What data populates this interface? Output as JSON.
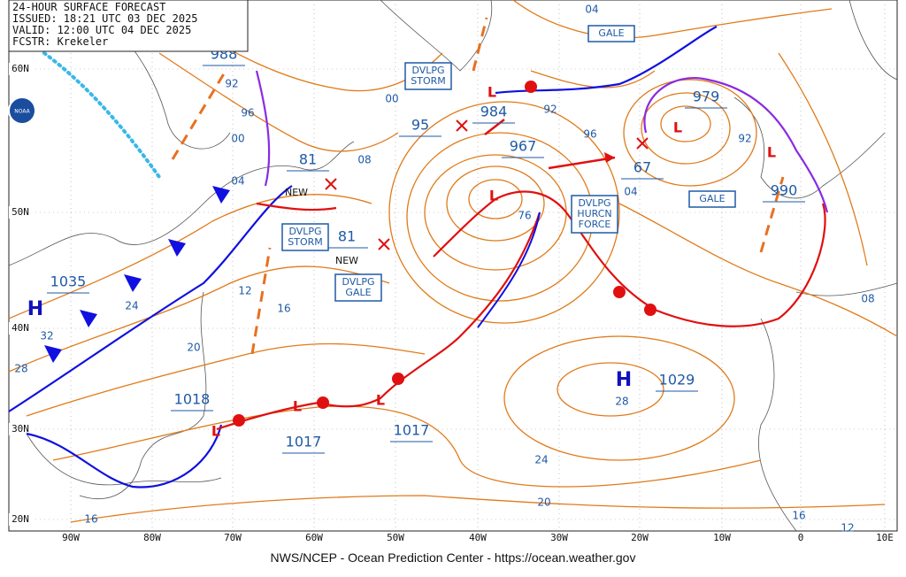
{
  "header": {
    "title": "24-HOUR SURFACE FORECAST",
    "issued": "ISSUED: 18:21 UTC 03 DEC 2025",
    "valid": "VALID:  12:00 UTC 04 DEC 2025",
    "forecaster": "FCSTR:  Krekeler"
  },
  "logo": "NOAA",
  "footer": "NWS/NCEP - Ocean Prediction Center - https://ocean.weather.gov",
  "latitudes": [
    "60N",
    "50N",
    "40N",
    "30N",
    "20N"
  ],
  "longitudes": [
    "90W",
    "80W",
    "70W",
    "60W",
    "50W",
    "40W",
    "30W",
    "20W",
    "10W",
    "0",
    "10E"
  ],
  "symbols": {
    "high": "H",
    "low": "L"
  },
  "center_pressures": [
    "988",
    "984",
    "967",
    "979",
    "990",
    "81",
    "81",
    "95",
    "1035",
    "1018",
    "1017",
    "1017",
    "1029",
    "67"
  ],
  "isobar_labels": [
    "04",
    "92",
    "96",
    "00",
    "04",
    "00",
    "92",
    "96",
    "08",
    "04",
    "92",
    "12",
    "16",
    "24",
    "32",
    "28",
    "20",
    "28",
    "24",
    "20",
    "16",
    "16",
    "12",
    "08",
    "76"
  ],
  "warnings": [
    [
      "GALE"
    ],
    [
      "DVLPG",
      "STORM"
    ],
    [
      "DVLPG",
      "HURCN",
      "FORCE"
    ],
    [
      "DVLPG",
      "STORM"
    ],
    [
      "DVLPG",
      "GALE"
    ],
    [
      "GALE"
    ]
  ],
  "new_labels": [
    "NEW",
    "NEW"
  ]
}
